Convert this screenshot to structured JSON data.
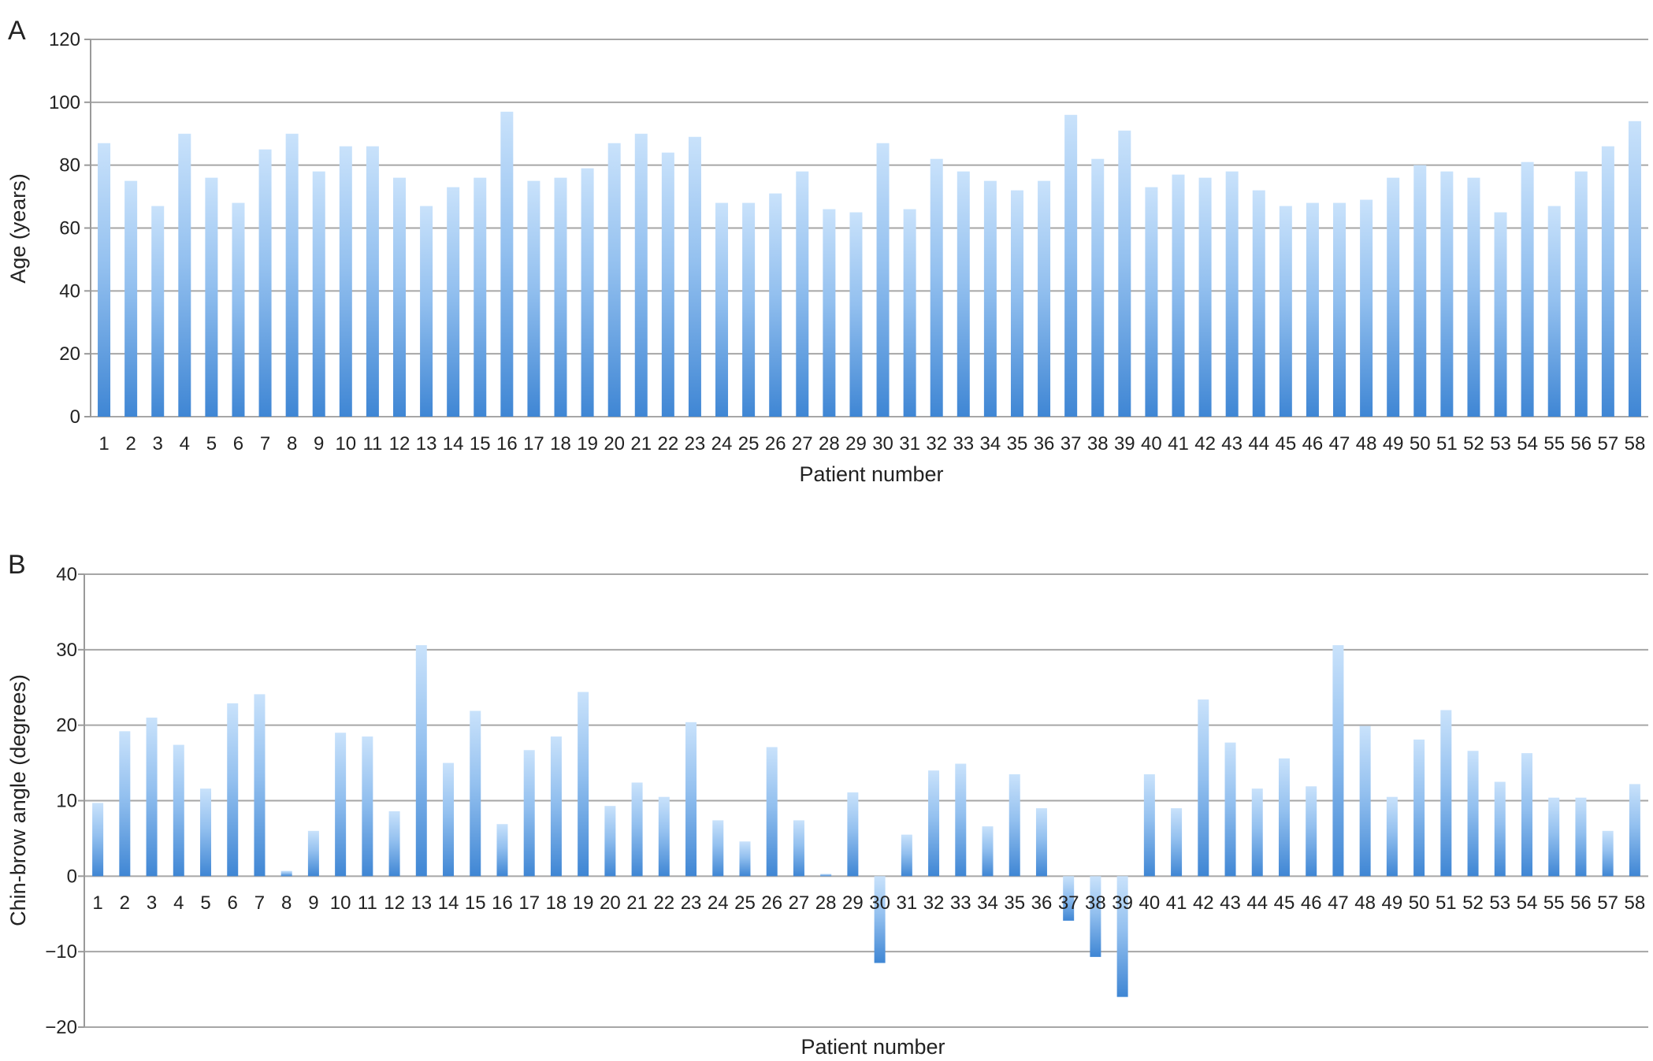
{
  "chart_data": [
    {
      "panel_label": "A",
      "type": "bar",
      "categories": [
        "1",
        "2",
        "3",
        "4",
        "5",
        "6",
        "7",
        "8",
        "9",
        "10",
        "11",
        "12",
        "13",
        "14",
        "15",
        "16",
        "17",
        "18",
        "19",
        "20",
        "21",
        "22",
        "23",
        "24",
        "25",
        "26",
        "27",
        "28",
        "29",
        "30",
        "31",
        "32",
        "33",
        "34",
        "35",
        "36",
        "37",
        "38",
        "39",
        "40",
        "41",
        "42",
        "43",
        "44",
        "45",
        "46",
        "47",
        "48",
        "49",
        "50",
        "51",
        "52",
        "53",
        "54",
        "55",
        "56",
        "57",
        "58"
      ],
      "values": [
        87,
        75,
        67,
        90,
        76,
        68,
        85,
        90,
        78,
        86,
        86,
        76,
        67,
        73,
        76,
        97,
        75,
        76,
        79,
        87,
        90,
        84,
        89,
        68,
        68,
        71,
        78,
        66,
        65,
        87,
        66,
        82,
        78,
        75,
        72,
        75,
        96,
        82,
        91,
        73,
        77,
        76,
        78,
        72,
        67,
        68,
        68,
        69,
        76,
        80,
        78,
        76,
        65,
        81,
        67,
        78,
        86,
        94
      ],
      "xlabel": "Patient number",
      "ylabel": "Age (years)",
      "ylim": [
        0,
        120
      ],
      "yticks": [
        0,
        20,
        40,
        60,
        80,
        100,
        120
      ],
      "ytick_labels": [
        "0",
        "20",
        "40",
        "60",
        "80",
        "100",
        "120"
      ],
      "grid": true
    },
    {
      "panel_label": "B",
      "type": "bar",
      "categories": [
        "1",
        "2",
        "3",
        "4",
        "5",
        "6",
        "7",
        "8",
        "9",
        "10",
        "11",
        "12",
        "13",
        "14",
        "15",
        "16",
        "17",
        "18",
        "19",
        "20",
        "21",
        "22",
        "23",
        "24",
        "25",
        "26",
        "27",
        "28",
        "29",
        "30",
        "31",
        "32",
        "33",
        "34",
        "35",
        "36",
        "37",
        "38",
        "39",
        "40",
        "41",
        "42",
        "43",
        "44",
        "45",
        "46",
        "47",
        "48",
        "49",
        "50",
        "51",
        "52",
        "53",
        "54",
        "55",
        "56",
        "57",
        "58"
      ],
      "values": [
        9.7,
        19.2,
        21,
        17.4,
        11.6,
        22.9,
        24.1,
        0.7,
        6,
        19,
        18.5,
        8.6,
        30.6,
        15,
        21.9,
        6.9,
        16.7,
        18.5,
        24.4,
        9.3,
        12.4,
        10.5,
        20.4,
        7.4,
        4.6,
        17.1,
        7.4,
        0.3,
        11.1,
        -11.5,
        5.5,
        14,
        14.9,
        6.6,
        13.5,
        9,
        -5.9,
        -10.7,
        -16,
        13.5,
        9,
        23.4,
        17.7,
        11.6,
        15.6,
        11.9,
        30.6,
        19.9,
        10.5,
        18.1,
        22,
        16.6,
        12.5,
        16.3,
        10.4,
        10.4,
        6,
        12.2
      ],
      "xlabel": "Patient number",
      "ylabel": "Chin-brow angle (degrees)",
      "ylim": [
        -20,
        40
      ],
      "yticks": [
        -20,
        -10,
        0,
        10,
        20,
        30,
        40
      ],
      "ytick_labels": [
        "−20",
        "−10",
        "0",
        "10",
        "20",
        "30",
        "40"
      ],
      "grid": true
    }
  ],
  "colors": {
    "bar_top": "#c9e2fb",
    "bar_mid": "#93c0ef",
    "bar_bottom": "#3f86d4",
    "grid": "#a6a6a6",
    "axis": "#9a9a9a"
  }
}
